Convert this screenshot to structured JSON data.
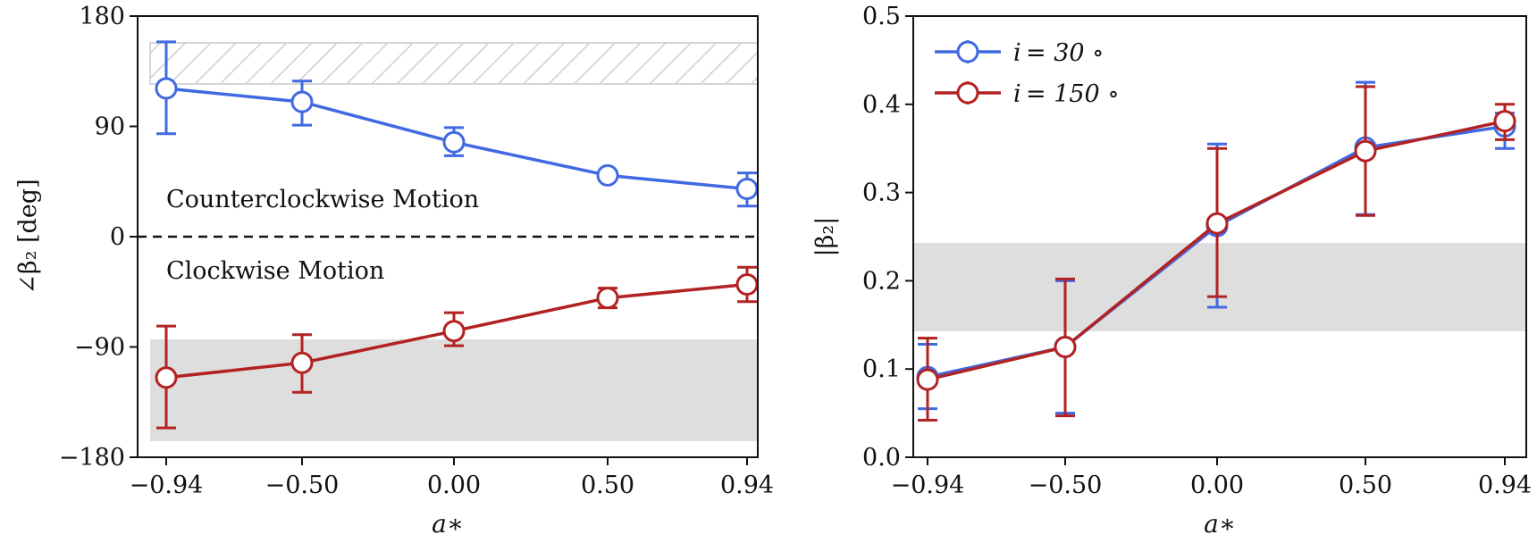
{
  "chart_data": [
    {
      "type": "line",
      "panel": "left",
      "xlabel": "a∗",
      "ylabel": "∠β₂ [deg]",
      "categories": [
        "−0.94",
        "−0.50",
        "0.00",
        "0.50",
        "0.94"
      ],
      "ylim": [
        -180,
        180
      ],
      "yticks": [
        180,
        90,
        0,
        -90,
        -180
      ],
      "ytick_labels": [
        "180",
        "90",
        "0",
        "−90",
        "−180"
      ],
      "series": [
        {
          "name": "i = 30°",
          "color": "#4169E1",
          "values": [
            121,
            110,
            77,
            50,
            39
          ],
          "err_low": [
            84,
            91,
            66,
            50,
            25
          ],
          "err_high": [
            159,
            127,
            89,
            50,
            52
          ]
        },
        {
          "name": "i = 150°",
          "color": "#B22222",
          "values": [
            -115,
            -103,
            -77,
            -50,
            -39
          ],
          "err_low": [
            -156,
            -127,
            -89,
            -58,
            -53
          ],
          "err_high": [
            -73,
            -80,
            -62,
            -42,
            -25
          ]
        }
      ],
      "hatched_band": [
        125,
        160
      ],
      "shaded_band": [
        -170,
        -85
      ],
      "reference_line": 0,
      "annotations": [
        "Counterclockwise Motion",
        "Clockwise Motion"
      ]
    },
    {
      "type": "line",
      "panel": "right",
      "xlabel": "a∗",
      "ylabel": "|β₂|",
      "categories": [
        "−0.94",
        "−0.50",
        "0.00",
        "0.50",
        "0.94"
      ],
      "ylim": [
        0.0,
        0.5
      ],
      "yticks": [
        0.0,
        0.1,
        0.2,
        0.3,
        0.4,
        0.5
      ],
      "ytick_labels": [
        "0.0",
        "0.1",
        "0.2",
        "0.3",
        "0.4",
        "0.5"
      ],
      "series": [
        {
          "name": "i = 30°",
          "color": "#4169E1",
          "values": [
            0.091,
            0.125,
            0.262,
            0.351,
            0.375
          ],
          "err_low": [
            0.055,
            0.05,
            0.17,
            0.275,
            0.35
          ],
          "err_high": [
            0.128,
            0.2,
            0.355,
            0.425,
            0.39
          ]
        },
        {
          "name": "i = 150°",
          "color": "#B22222",
          "values": [
            0.088,
            0.125,
            0.265,
            0.347,
            0.381
          ],
          "err_low": [
            0.042,
            0.047,
            0.182,
            0.274,
            0.36
          ],
          "err_high": [
            0.135,
            0.202,
            0.35,
            0.42,
            0.4
          ]
        }
      ],
      "shaded_band": [
        0.143,
        0.244
      ],
      "legend": {
        "position": "top-left",
        "entries": [
          {
            "prefix": "i",
            "rest": "= 30 ∘"
          },
          {
            "prefix": "i",
            "rest": "= 150 ∘"
          }
        ]
      }
    }
  ]
}
